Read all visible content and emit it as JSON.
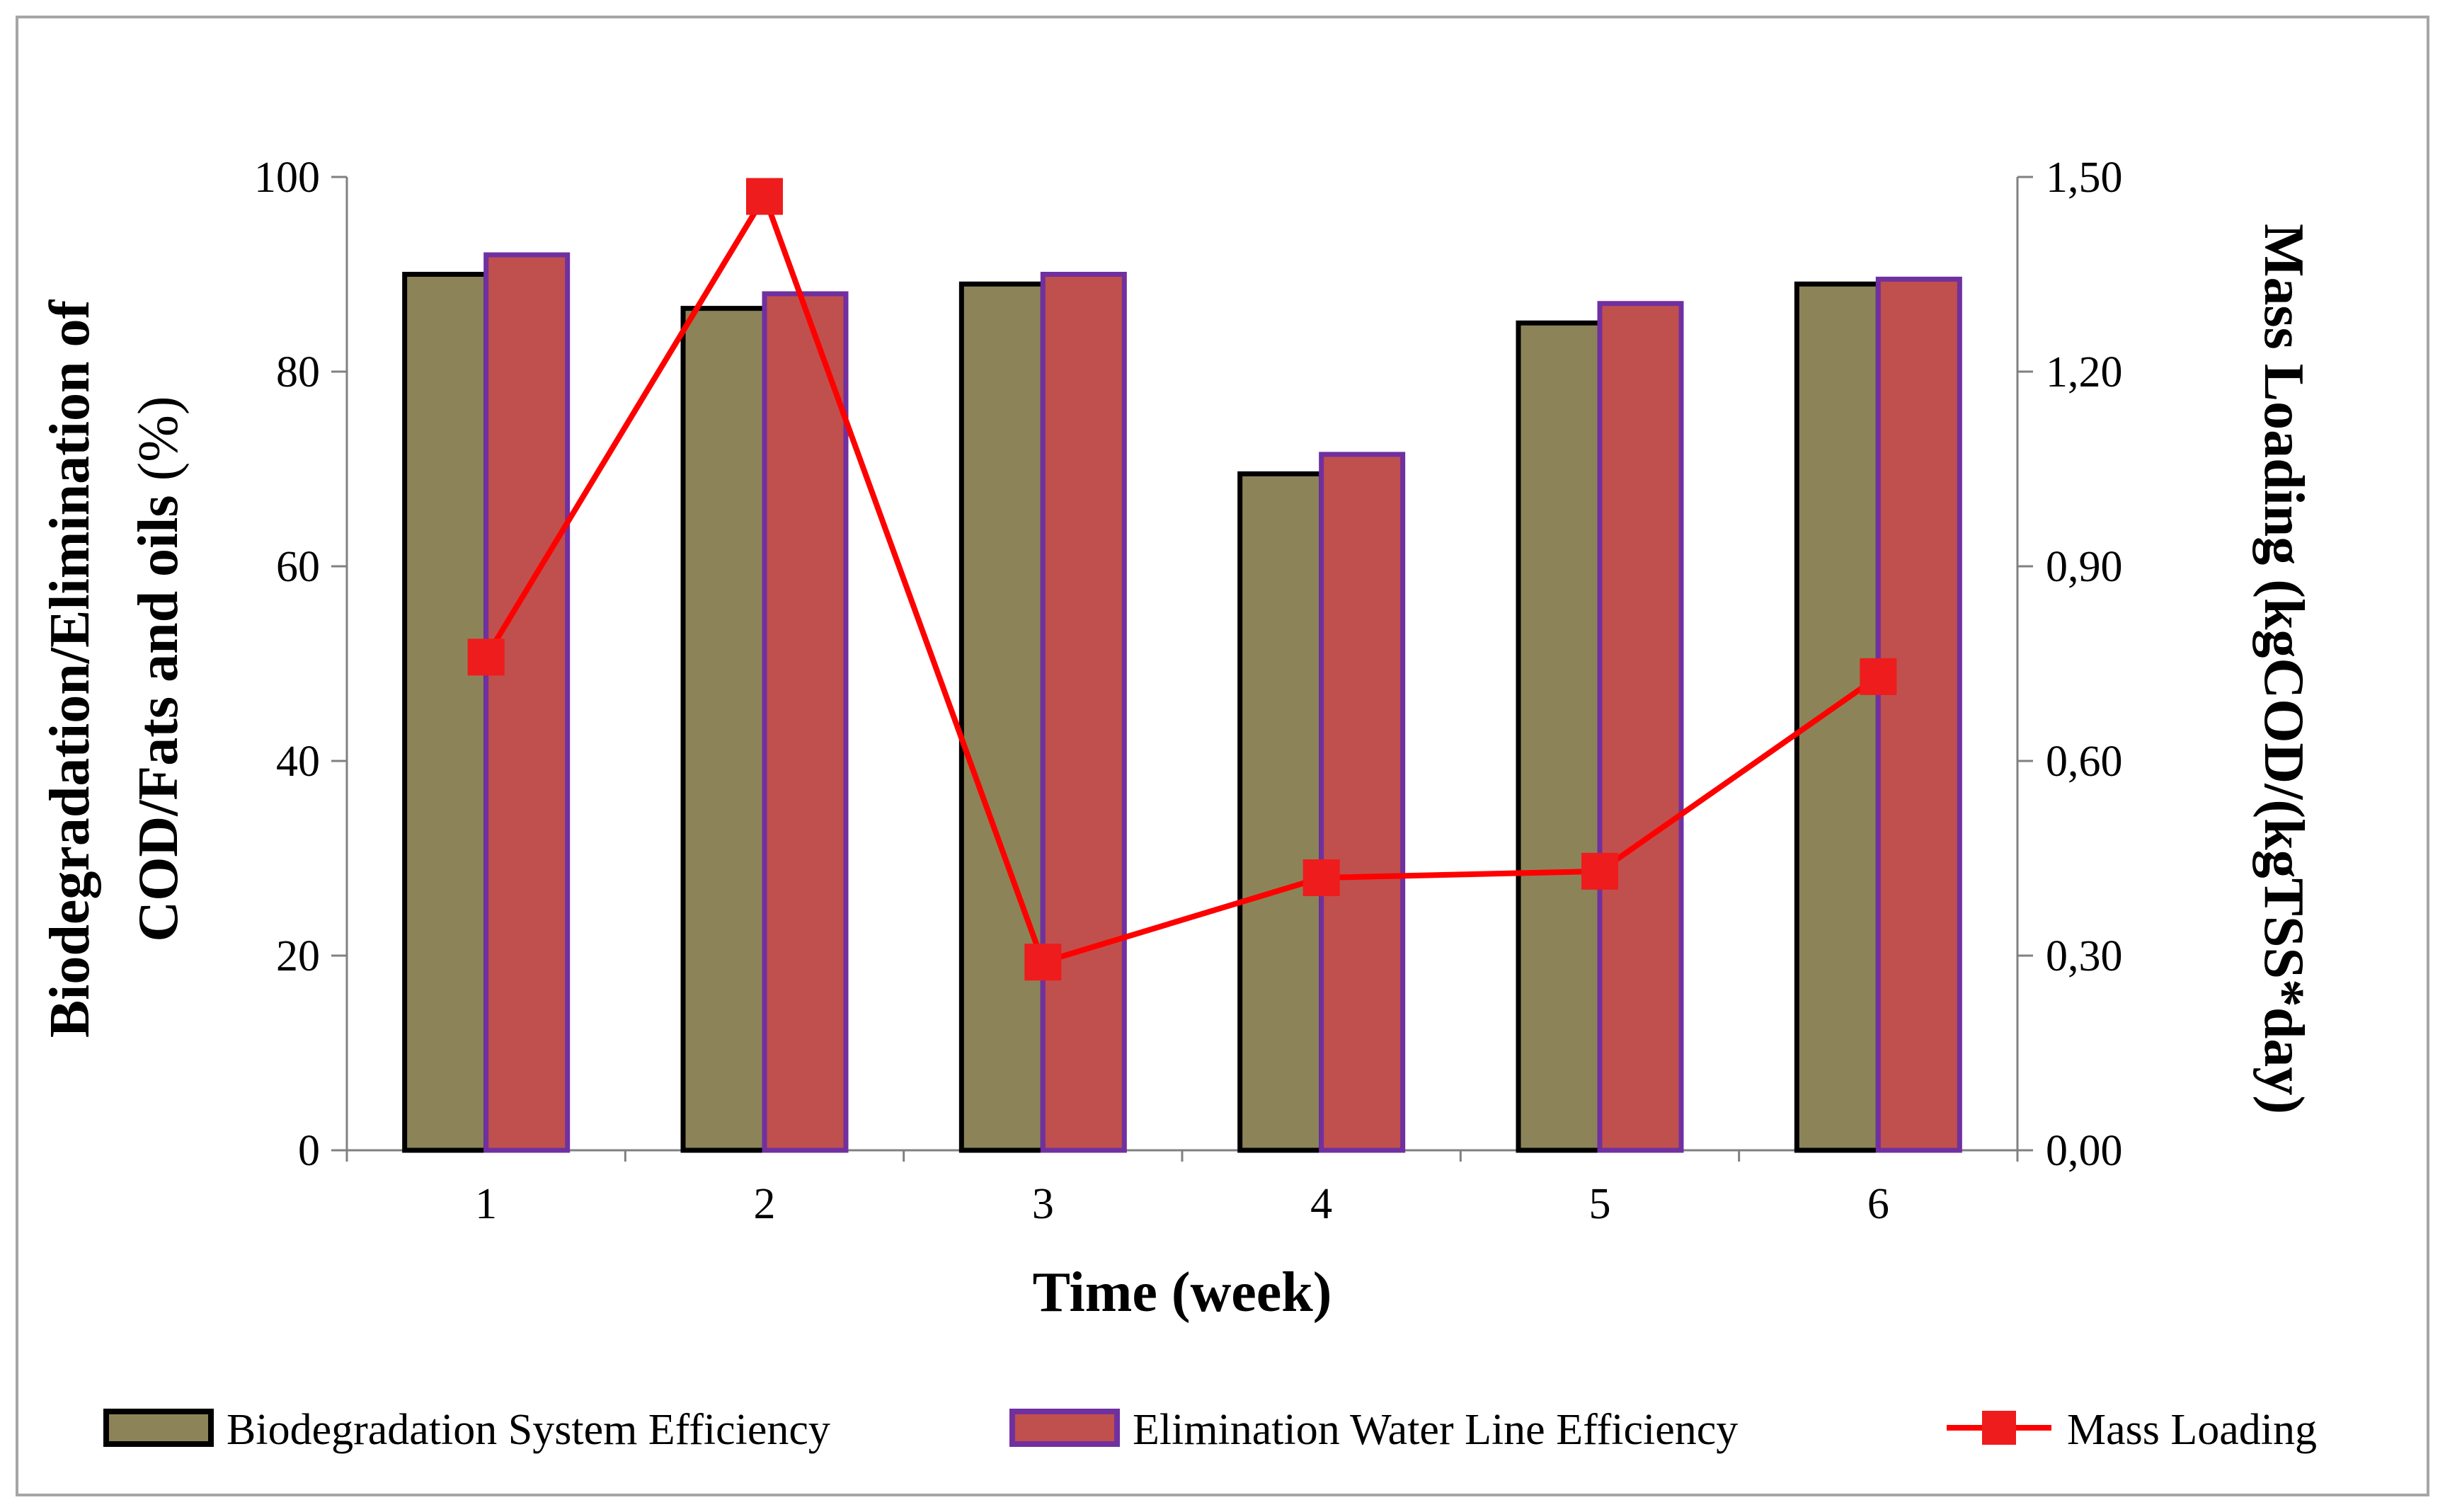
{
  "chart_data": {
    "type": "bar",
    "title": "",
    "xlabel": "Time (week)",
    "ylabel_lines": [
      "Biodegradation/Elimination of",
      "COD/Fats and oils"
    ],
    "ylabel_unit": "(%)",
    "y2label": "Mass Loading (kgCOD/(kgTSS*day)",
    "categories": [
      "1",
      "2",
      "3",
      "4",
      "5",
      "6"
    ],
    "ylim": [
      0,
      100
    ],
    "yticks": [
      0,
      20,
      40,
      60,
      80,
      100
    ],
    "ytick_labels": [
      "0",
      "20",
      "40",
      "60",
      "80",
      "100"
    ],
    "y2lim": [
      0,
      1.5
    ],
    "y2ticks": [
      0,
      0.3,
      0.6,
      0.9,
      1.2,
      1.5
    ],
    "y2tick_labels": [
      "0,00",
      "0,30",
      "0,60",
      "0,90",
      "1,20",
      "1,50"
    ],
    "legend_position": "bottom",
    "grid": false,
    "series": [
      {
        "name": "Biodegradation System Efficiency",
        "kind": "bar",
        "axis": "left",
        "color": "#8c8458",
        "edge_color": "#000000",
        "values": [
          90,
          86.5,
          89,
          69.5,
          85,
          89
        ]
      },
      {
        "name": "Elimination Water Line  Efficiency",
        "kind": "bar",
        "axis": "left",
        "color": "#c0504d",
        "edge_color": "#7030a0",
        "values": [
          92,
          88,
          90,
          71.5,
          87,
          89.5
        ]
      },
      {
        "name": "Mass Loading",
        "kind": "line",
        "axis": "right",
        "color": "#ff0000",
        "marker_color": "#ee1c1c",
        "values": [
          0.76,
          1.47,
          0.29,
          0.42,
          0.43,
          0.73
        ]
      }
    ]
  }
}
